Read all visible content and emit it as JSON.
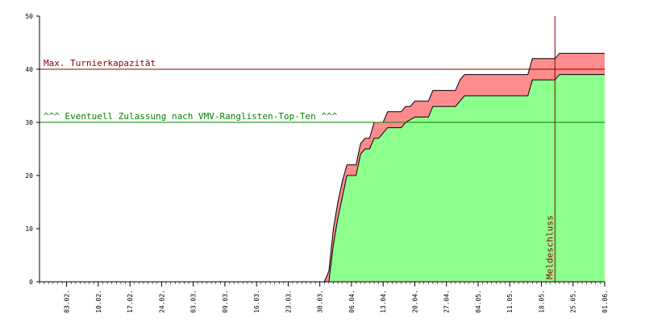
{
  "chart_data": {
    "type": "area",
    "title": "",
    "xlabel": "",
    "ylabel": "",
    "x_ticks": [
      "03.02.",
      "10.02.",
      "17.02.",
      "24.02.",
      "03.03.",
      "09.03.",
      "16.03.",
      "23.03.",
      "30.03.",
      "06.04.",
      "13.04.",
      "20.04.",
      "27.04.",
      "04.05.",
      "11.05.",
      "18.05.",
      "25.05.",
      "01.06."
    ],
    "xlim": [
      "2020-01-28",
      "2020-06-01"
    ],
    "ylim": [
      0,
      50
    ],
    "y_ticks": [
      0,
      10,
      20,
      30,
      40,
      50
    ],
    "grid": false,
    "series": [
      {
        "color": "#ff8c8c",
        "points": [
          [
            "2020-01-28",
            0
          ],
          [
            "2020-03-31",
            0
          ],
          [
            "2020-04-01",
            2
          ],
          [
            "2020-04-02",
            10
          ],
          [
            "2020-04-03",
            15
          ],
          [
            "2020-04-04",
            19
          ],
          [
            "2020-04-05",
            22
          ],
          [
            "2020-04-07",
            22
          ],
          [
            "2020-04-08",
            26
          ],
          [
            "2020-04-09",
            27
          ],
          [
            "2020-04-10",
            27
          ],
          [
            "2020-04-11",
            30
          ],
          [
            "2020-04-13",
            30
          ],
          [
            "2020-04-14",
            32
          ],
          [
            "2020-04-17",
            32
          ],
          [
            "2020-04-18",
            33
          ],
          [
            "2020-04-19",
            33
          ],
          [
            "2020-04-20",
            34
          ],
          [
            "2020-04-23",
            34
          ],
          [
            "2020-04-24",
            36
          ],
          [
            "2020-04-29",
            36
          ],
          [
            "2020-04-30",
            38
          ],
          [
            "2020-05-01",
            39
          ],
          [
            "2020-05-15",
            39
          ],
          [
            "2020-05-16",
            42
          ],
          [
            "2020-05-21",
            42
          ],
          [
            "2020-05-22",
            43
          ],
          [
            "2020-06-01",
            43
          ]
        ]
      },
      {
        "color": "#8cff8c",
        "points": [
          [
            "2020-01-28",
            0
          ],
          [
            "2020-04-01",
            0
          ],
          [
            "2020-04-02",
            7
          ],
          [
            "2020-04-03",
            12
          ],
          [
            "2020-04-04",
            16
          ],
          [
            "2020-04-05",
            20
          ],
          [
            "2020-04-07",
            20
          ],
          [
            "2020-04-08",
            24
          ],
          [
            "2020-04-09",
            25
          ],
          [
            "2020-04-10",
            25
          ],
          [
            "2020-04-11",
            27
          ],
          [
            "2020-04-12",
            27
          ],
          [
            "2020-04-13",
            28
          ],
          [
            "2020-04-14",
            29
          ],
          [
            "2020-04-17",
            29
          ],
          [
            "2020-04-18",
            30
          ],
          [
            "2020-04-20",
            31
          ],
          [
            "2020-04-23",
            31
          ],
          [
            "2020-04-24",
            33
          ],
          [
            "2020-04-29",
            33
          ],
          [
            "2020-04-30",
            34
          ],
          [
            "2020-05-01",
            35
          ],
          [
            "2020-05-15",
            35
          ],
          [
            "2020-05-16",
            38
          ],
          [
            "2020-05-21",
            38
          ],
          [
            "2020-05-22",
            39
          ],
          [
            "2020-06-01",
            39
          ]
        ]
      }
    ],
    "hlines": [
      {
        "label": "Max. Turnierkapazität",
        "y": 40,
        "color": "#8b0000"
      },
      {
        "label": "^^^ Eventuell Zulassung nach VMV-Ranglisten-Top-Ten ^^^",
        "y": 30,
        "color": "#008000"
      }
    ],
    "vlines": [
      {
        "label": "Meldeschluss",
        "x": "2020-05-21",
        "color": "#8b0000"
      }
    ]
  }
}
